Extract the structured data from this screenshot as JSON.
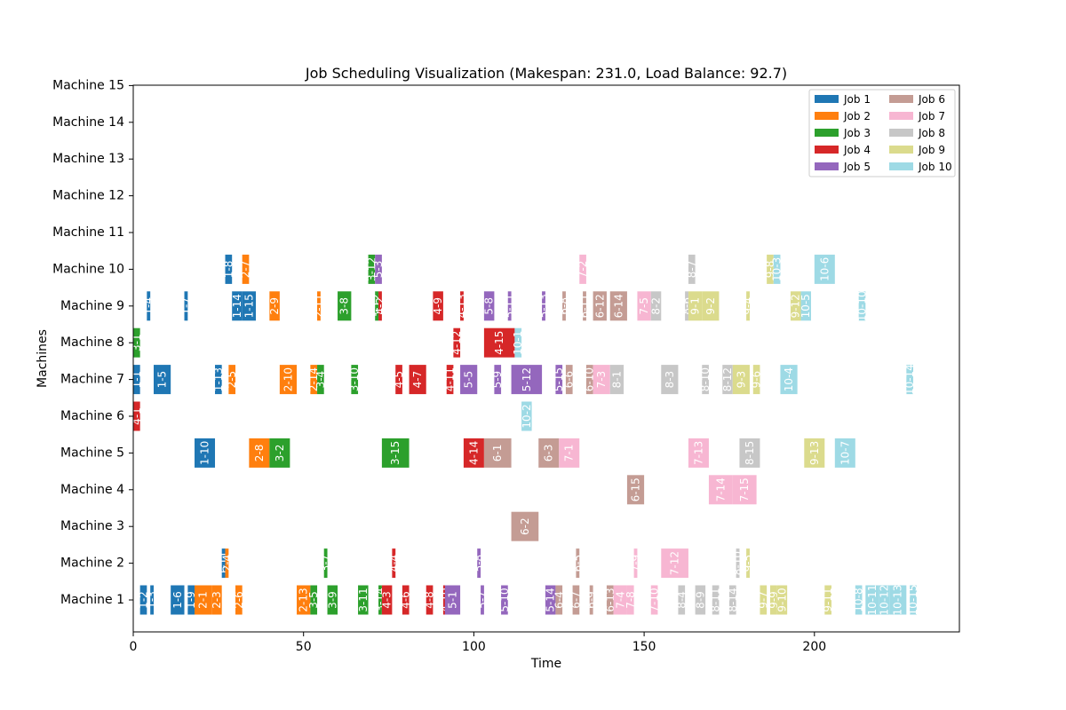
{
  "chart_data": {
    "type": "gantt",
    "title": "Job Scheduling Visualization (Makespan: 231.0, Load Balance: 92.7)",
    "xlabel": "Time",
    "ylabel": "Machines",
    "xlim": [
      0,
      242
    ],
    "x_ticks": [
      0,
      50,
      100,
      150,
      200
    ],
    "machines": [
      "Machine 1",
      "Machine 2",
      "Machine 3",
      "Machine 4",
      "Machine 5",
      "Machine 6",
      "Machine 7",
      "Machine 8",
      "Machine 9",
      "Machine 10",
      "Machine 11",
      "Machine 12",
      "Machine 13",
      "Machine 14",
      "Machine 15"
    ],
    "grid": false,
    "legend_position": "top-right",
    "legend_columns": 2,
    "series": [
      {
        "name": "Job 1",
        "color": "#1f77b4"
      },
      {
        "name": "Job 2",
        "color": "#ff7f0e"
      },
      {
        "name": "Job 3",
        "color": "#2ca02c"
      },
      {
        "name": "Job 4",
        "color": "#d62728"
      },
      {
        "name": "Job 5",
        "color": "#9467bd"
      },
      {
        "name": "Job 6",
        "color": "#c49c94"
      },
      {
        "name": "Job 7",
        "color": "#f7b6d2"
      },
      {
        "name": "Job 8",
        "color": "#c7c7c7"
      },
      {
        "name": "Job 9",
        "color": "#dbdb8d"
      },
      {
        "name": "Job 10",
        "color": "#9edae5"
      }
    ],
    "tasks": [
      {
        "machine": 1,
        "job": 1,
        "label": "1-2",
        "start": 2,
        "end": 4
      },
      {
        "machine": 1,
        "job": 1,
        "label": "1-3",
        "start": 5,
        "end": 6
      },
      {
        "machine": 1,
        "job": 1,
        "label": "1-6",
        "start": 11,
        "end": 15
      },
      {
        "machine": 1,
        "job": 1,
        "label": "1-9",
        "start": 16,
        "end": 18
      },
      {
        "machine": 1,
        "job": 2,
        "label": "2-1",
        "start": 18,
        "end": 23
      },
      {
        "machine": 1,
        "job": 2,
        "label": "2-3",
        "start": 23,
        "end": 26
      },
      {
        "machine": 1,
        "job": 2,
        "label": "2-6",
        "start": 30,
        "end": 32
      },
      {
        "machine": 1,
        "job": 2,
        "label": "2-13",
        "start": 48,
        "end": 52
      },
      {
        "machine": 1,
        "job": 3,
        "label": "3-5",
        "start": 52,
        "end": 54
      },
      {
        "machine": 1,
        "job": 3,
        "label": "3-9",
        "start": 57,
        "end": 60
      },
      {
        "machine": 1,
        "job": 3,
        "label": "3-11",
        "start": 66,
        "end": 69
      },
      {
        "machine": 1,
        "job": 3,
        "label": "3-14",
        "start": 72,
        "end": 73
      },
      {
        "machine": 1,
        "job": 4,
        "label": "4-3",
        "start": 73,
        "end": 76
      },
      {
        "machine": 1,
        "job": 4,
        "label": "4-6",
        "start": 79,
        "end": 81
      },
      {
        "machine": 1,
        "job": 4,
        "label": "4-8",
        "start": 86,
        "end": 88
      },
      {
        "machine": 1,
        "job": 4,
        "label": "4-10",
        "start": 91,
        "end": 92
      },
      {
        "machine": 1,
        "job": 5,
        "label": "5-1",
        "start": 91.5,
        "end": 96
      },
      {
        "machine": 1,
        "job": 5,
        "label": "5-7",
        "start": 102,
        "end": 103
      },
      {
        "machine": 1,
        "job": 5,
        "label": "5-10",
        "start": 108,
        "end": 110
      },
      {
        "machine": 1,
        "job": 5,
        "label": "5-14",
        "start": 121,
        "end": 124
      },
      {
        "machine": 1,
        "job": 6,
        "label": "6-4",
        "start": 124,
        "end": 126
      },
      {
        "machine": 1,
        "job": 6,
        "label": "6-7",
        "start": 129,
        "end": 131
      },
      {
        "machine": 1,
        "job": 6,
        "label": "6-9",
        "start": 134,
        "end": 135
      },
      {
        "machine": 1,
        "job": 6,
        "label": "6-13",
        "start": 139,
        "end": 141
      },
      {
        "machine": 1,
        "job": 7,
        "label": "7-4",
        "start": 141,
        "end": 145
      },
      {
        "machine": 1,
        "job": 7,
        "label": "7-8",
        "start": 145,
        "end": 147
      },
      {
        "machine": 1,
        "job": 7,
        "label": "7-10",
        "start": 152,
        "end": 154
      },
      {
        "machine": 1,
        "job": 8,
        "label": "8-4",
        "start": 160,
        "end": 162
      },
      {
        "machine": 1,
        "job": 8,
        "label": "8-9",
        "start": 165,
        "end": 168
      },
      {
        "machine": 1,
        "job": 8,
        "label": "8-11",
        "start": 170,
        "end": 172
      },
      {
        "machine": 1,
        "job": 8,
        "label": "8-14",
        "start": 175,
        "end": 177
      },
      {
        "machine": 1,
        "job": 9,
        "label": "9-7",
        "start": 184,
        "end": 186
      },
      {
        "machine": 1,
        "job": 9,
        "label": "9-9",
        "start": 187,
        "end": 189
      },
      {
        "machine": 1,
        "job": 9,
        "label": "9-10",
        "start": 189,
        "end": 192
      },
      {
        "machine": 1,
        "job": 9,
        "label": "9-11",
        "start": 203,
        "end": 205
      },
      {
        "machine": 1,
        "job": 10,
        "label": "10-8",
        "start": 212,
        "end": 214
      },
      {
        "machine": 1,
        "job": 10,
        "label": "10-11",
        "start": 215,
        "end": 219
      },
      {
        "machine": 1,
        "job": 10,
        "label": "10-12",
        "start": 219,
        "end": 222
      },
      {
        "machine": 1,
        "job": 10,
        "label": "10-13",
        "start": 222,
        "end": 227
      },
      {
        "machine": 1,
        "job": 10,
        "label": "10-15",
        "start": 228,
        "end": 230
      },
      {
        "machine": 2,
        "job": 1,
        "label": "1-11",
        "start": 26,
        "end": 27
      },
      {
        "machine": 2,
        "job": 2,
        "label": "2-4",
        "start": 27,
        "end": 28
      },
      {
        "machine": 2,
        "job": 3,
        "label": "3-7",
        "start": 56,
        "end": 57
      },
      {
        "machine": 2,
        "job": 4,
        "label": "4-4",
        "start": 76,
        "end": 77
      },
      {
        "machine": 2,
        "job": 5,
        "label": "5-8",
        "start": 101,
        "end": 102
      },
      {
        "machine": 2,
        "job": 6,
        "label": "6-5",
        "start": 130,
        "end": 131
      },
      {
        "machine": 2,
        "job": 7,
        "label": "7-9",
        "start": 147,
        "end": 148
      },
      {
        "machine": 2,
        "job": 7,
        "label": "7-12",
        "start": 155,
        "end": 163
      },
      {
        "machine": 2,
        "job": 8,
        "label": "8-10",
        "start": 177,
        "end": 178
      },
      {
        "machine": 2,
        "job": 9,
        "label": "9-5",
        "start": 180,
        "end": 181
      },
      {
        "machine": 3,
        "job": 6,
        "label": "6-2",
        "start": 111,
        "end": 119
      },
      {
        "machine": 4,
        "job": 6,
        "label": "6-15",
        "start": 145,
        "end": 150
      },
      {
        "machine": 4,
        "job": 7,
        "label": "7-14",
        "start": 169,
        "end": 176
      },
      {
        "machine": 4,
        "job": 7,
        "label": "7-15",
        "start": 176,
        "end": 183
      },
      {
        "machine": 5,
        "job": 1,
        "label": "1-10",
        "start": 18,
        "end": 24
      },
      {
        "machine": 5,
        "job": 2,
        "label": "2-8",
        "start": 34,
        "end": 40
      },
      {
        "machine": 5,
        "job": 3,
        "label": "3-2",
        "start": 40,
        "end": 46
      },
      {
        "machine": 5,
        "job": 3,
        "label": "3-15",
        "start": 73,
        "end": 81
      },
      {
        "machine": 5,
        "job": 4,
        "label": "4-14",
        "start": 97,
        "end": 103
      },
      {
        "machine": 5,
        "job": 6,
        "label": "6-1",
        "start": 103,
        "end": 111
      },
      {
        "machine": 5,
        "job": 6,
        "label": "6-3",
        "start": 119,
        "end": 125
      },
      {
        "machine": 5,
        "job": 7,
        "label": "7-1",
        "start": 125,
        "end": 131
      },
      {
        "machine": 5,
        "job": 7,
        "label": "7-13",
        "start": 163,
        "end": 169
      },
      {
        "machine": 5,
        "job": 8,
        "label": "8-15",
        "start": 178,
        "end": 184
      },
      {
        "machine": 5,
        "job": 9,
        "label": "9-13",
        "start": 197,
        "end": 203
      },
      {
        "machine": 5,
        "job": 10,
        "label": "10-7",
        "start": 206,
        "end": 212
      },
      {
        "machine": 6,
        "job": 4,
        "label": "4-1",
        "start": 0,
        "end": 2
      },
      {
        "machine": 6,
        "job": 10,
        "label": "10-2",
        "start": 114,
        "end": 117
      },
      {
        "machine": 7,
        "job": 1,
        "label": "1-1",
        "start": 0,
        "end": 2
      },
      {
        "machine": 7,
        "job": 1,
        "label": "1-5",
        "start": 6,
        "end": 11
      },
      {
        "machine": 7,
        "job": 1,
        "label": "1-13",
        "start": 24,
        "end": 26
      },
      {
        "machine": 7,
        "job": 2,
        "label": "2-5",
        "start": 28,
        "end": 30
      },
      {
        "machine": 7,
        "job": 2,
        "label": "2-10",
        "start": 43,
        "end": 48
      },
      {
        "machine": 7,
        "job": 2,
        "label": "2-14",
        "start": 52,
        "end": 54
      },
      {
        "machine": 7,
        "job": 3,
        "label": "3-4",
        "start": 54,
        "end": 56
      },
      {
        "machine": 7,
        "job": 3,
        "label": "3-10",
        "start": 64,
        "end": 66
      },
      {
        "machine": 7,
        "job": 4,
        "label": "4-5",
        "start": 77,
        "end": 79
      },
      {
        "machine": 7,
        "job": 4,
        "label": "4-7",
        "start": 81,
        "end": 86
      },
      {
        "machine": 7,
        "job": 4,
        "label": "4-11",
        "start": 92,
        "end": 94
      },
      {
        "machine": 7,
        "job": 5,
        "label": "5-5",
        "start": 96,
        "end": 101
      },
      {
        "machine": 7,
        "job": 5,
        "label": "5-9",
        "start": 106,
        "end": 108
      },
      {
        "machine": 7,
        "job": 5,
        "label": "5-12",
        "start": 111,
        "end": 120
      },
      {
        "machine": 7,
        "job": 5,
        "label": "5-15",
        "start": 124,
        "end": 126
      },
      {
        "machine": 7,
        "job": 6,
        "label": "6-6",
        "start": 127,
        "end": 129
      },
      {
        "machine": 7,
        "job": 6,
        "label": "6-10",
        "start": 133,
        "end": 135
      },
      {
        "machine": 7,
        "job": 7,
        "label": "7-3",
        "start": 135,
        "end": 140
      },
      {
        "machine": 7,
        "job": 8,
        "label": "8-1",
        "start": 140,
        "end": 144
      },
      {
        "machine": 7,
        "job": 8,
        "label": "8-3",
        "start": 155,
        "end": 160
      },
      {
        "machine": 7,
        "job": 8,
        "label": "8-10",
        "start": 167,
        "end": 169
      },
      {
        "machine": 7,
        "job": 8,
        "label": "8-12",
        "start": 173,
        "end": 176
      },
      {
        "machine": 7,
        "job": 9,
        "label": "9-3",
        "start": 176,
        "end": 181
      },
      {
        "machine": 7,
        "job": 9,
        "label": "9-6",
        "start": 182,
        "end": 184
      },
      {
        "machine": 7,
        "job": 10,
        "label": "10-4",
        "start": 190,
        "end": 195
      },
      {
        "machine": 7,
        "job": 10,
        "label": "10-14",
        "start": 227,
        "end": 229
      },
      {
        "machine": 8,
        "job": 3,
        "label": "3-1",
        "start": 0,
        "end": 2
      },
      {
        "machine": 8,
        "job": 4,
        "label": "4-12",
        "start": 94,
        "end": 96
      },
      {
        "machine": 8,
        "job": 4,
        "label": "4-15",
        "start": 103,
        "end": 112
      },
      {
        "machine": 8,
        "job": 10,
        "label": "10-1",
        "start": 112,
        "end": 114
      },
      {
        "machine": 9,
        "job": 1,
        "label": "1-4",
        "start": 4,
        "end": 5
      },
      {
        "machine": 9,
        "job": 1,
        "label": "1-7",
        "start": 15,
        "end": 16
      },
      {
        "machine": 9,
        "job": 1,
        "label": "1-14",
        "start": 29,
        "end": 32
      },
      {
        "machine": 9,
        "job": 1,
        "label": "1-15",
        "start": 32,
        "end": 36
      },
      {
        "machine": 9,
        "job": 2,
        "label": "2-9",
        "start": 40,
        "end": 43
      },
      {
        "machine": 9,
        "job": 2,
        "label": "2-11",
        "start": 54,
        "end": 55
      },
      {
        "machine": 9,
        "job": 3,
        "label": "3-8",
        "start": 60,
        "end": 64
      },
      {
        "machine": 9,
        "job": 3,
        "label": "3-12",
        "start": 71,
        "end": 72
      },
      {
        "machine": 9,
        "job": 4,
        "label": "4-2",
        "start": 72,
        "end": 73
      },
      {
        "machine": 9,
        "job": 4,
        "label": "4-9",
        "start": 88,
        "end": 91
      },
      {
        "machine": 9,
        "job": 4,
        "label": "4-13",
        "start": 96,
        "end": 97
      },
      {
        "machine": 9,
        "job": 5,
        "label": "5-8",
        "start": 103,
        "end": 106
      },
      {
        "machine": 9,
        "job": 5,
        "label": "5-11",
        "start": 110,
        "end": 111
      },
      {
        "machine": 9,
        "job": 5,
        "label": "5-13",
        "start": 120,
        "end": 121
      },
      {
        "machine": 9,
        "job": 6,
        "label": "6-8",
        "start": 126,
        "end": 127
      },
      {
        "machine": 9,
        "job": 6,
        "label": "6-11",
        "start": 132,
        "end": 133
      },
      {
        "machine": 9,
        "job": 6,
        "label": "6-12",
        "start": 135,
        "end": 139
      },
      {
        "machine": 9,
        "job": 6,
        "label": "6-14",
        "start": 140,
        "end": 145
      },
      {
        "machine": 9,
        "job": 7,
        "label": "7-5",
        "start": 148,
        "end": 152
      },
      {
        "machine": 9,
        "job": 8,
        "label": "8-2",
        "start": 152,
        "end": 155
      },
      {
        "machine": 9,
        "job": 8,
        "label": "8-6",
        "start": 162,
        "end": 163
      },
      {
        "machine": 9,
        "job": 9,
        "label": "9-1",
        "start": 163,
        "end": 167
      },
      {
        "machine": 9,
        "job": 9,
        "label": "9-2",
        "start": 167,
        "end": 172
      },
      {
        "machine": 9,
        "job": 9,
        "label": "9-4",
        "start": 180,
        "end": 181
      },
      {
        "machine": 9,
        "job": 9,
        "label": "9-12",
        "start": 193,
        "end": 196
      },
      {
        "machine": 9,
        "job": 10,
        "label": "10-5",
        "start": 196,
        "end": 199
      },
      {
        "machine": 9,
        "job": 10,
        "label": "10-10",
        "start": 213,
        "end": 215
      },
      {
        "machine": 10,
        "job": 1,
        "label": "1-8",
        "start": 27,
        "end": 29
      },
      {
        "machine": 10,
        "job": 2,
        "label": "2-7",
        "start": 32,
        "end": 34
      },
      {
        "machine": 10,
        "job": 3,
        "label": "3-12",
        "start": 69,
        "end": 71
      },
      {
        "machine": 10,
        "job": 5,
        "label": "5-3",
        "start": 71,
        "end": 73
      },
      {
        "machine": 10,
        "job": 7,
        "label": "7-2",
        "start": 131,
        "end": 133
      },
      {
        "machine": 10,
        "job": 8,
        "label": "8-7",
        "start": 163,
        "end": 165
      },
      {
        "machine": 10,
        "job": 9,
        "label": "9-8",
        "start": 186,
        "end": 188
      },
      {
        "machine": 10,
        "job": 10,
        "label": "10-3",
        "start": 188,
        "end": 190
      },
      {
        "machine": 10,
        "job": 10,
        "label": "10-6",
        "start": 200,
        "end": 206
      }
    ]
  }
}
